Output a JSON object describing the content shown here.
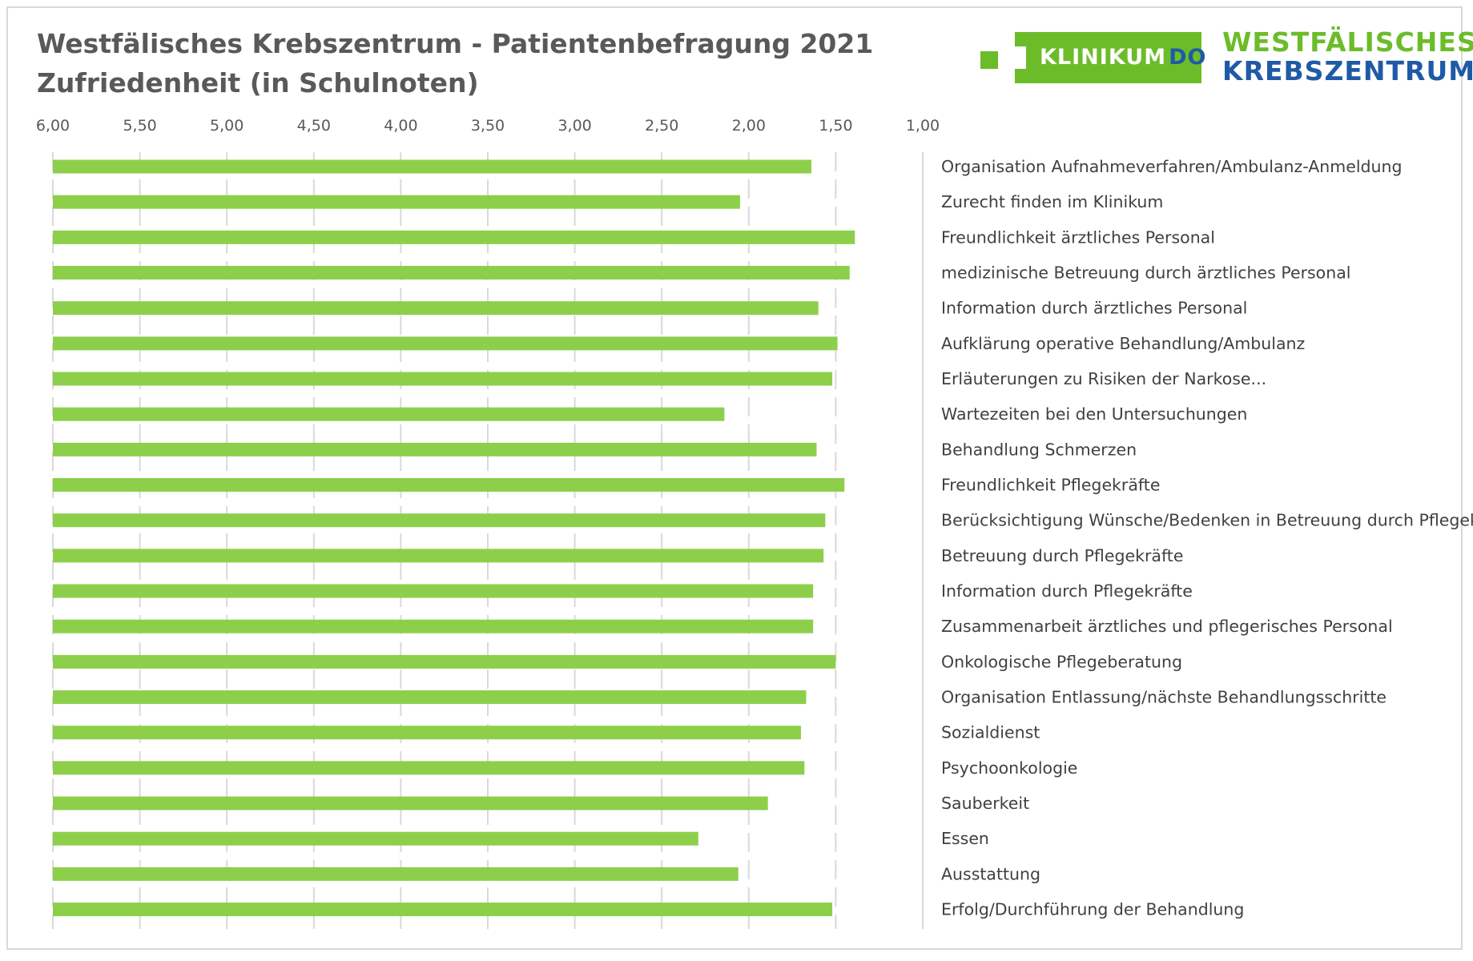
{
  "colors": {
    "bar": "#8dcf4a",
    "grid": "#d9d9d9",
    "logo_green": "#6cbc2a",
    "logo_blue": "#1f5aa6"
  },
  "logo": {
    "box_text_main": "KLINIKUM",
    "box_text_suffix": "DO",
    "line1": "WESTFÄLISCHES",
    "line2": "KREBSZENTRUM"
  },
  "chart_data": {
    "type": "bar",
    "orientation": "horizontal",
    "title": "Westfälisches Krebszentrum - Patientenbefragung 2021",
    "subtitle": "Zufriedenheit (in Schulnoten)",
    "xlim": [
      6.0,
      1.0
    ],
    "x_reversed": true,
    "ticks": [
      "6,00",
      "5,50",
      "5,00",
      "4,50",
      "4,00",
      "3,50",
      "3,00",
      "2,50",
      "2,00",
      "1,50",
      "1,00"
    ],
    "tick_values": [
      6.0,
      5.5,
      5.0,
      4.5,
      4.0,
      3.5,
      3.0,
      2.5,
      2.0,
      1.5,
      1.0
    ],
    "grid": true,
    "categories": [
      "Organisation Aufnahmeverfahren/Ambulanz-Anmeldung",
      "Zurecht finden im Klinikum",
      "Freundlichkeit ärztliches Personal",
      "medizinische Betreuung durch ärztliches Personal",
      "Information durch ärztliches Personal",
      "Aufklärung operative Behandlung/Ambulanz",
      "Erläuterungen zu Risiken der Narkose...",
      "Wartezeiten bei den Untersuchungen",
      "Behandlung Schmerzen",
      "Freundlichkeit Pflegekräfte",
      "Berücksichtigung Wünsche/Bedenken in Betreuung durch Pflegekräfte",
      "Betreuung durch Pflegekräfte",
      "Information durch Pflegekräfte",
      "Zusammenarbeit ärztliches und pflegerisches Personal",
      "Onkologische Pflegeberatung",
      "Organisation Entlassung/nächste Behandlungsschritte",
      "Sozialdienst",
      "Psychoonkologie",
      "Sauberkeit",
      "Essen",
      "Ausstattung",
      "Erfolg/Durchführung der Behandlung"
    ],
    "values": [
      1.64,
      2.05,
      1.39,
      1.42,
      1.6,
      1.49,
      1.52,
      2.14,
      1.61,
      1.45,
      1.56,
      1.57,
      1.63,
      1.63,
      1.5,
      1.67,
      1.7,
      1.68,
      1.89,
      2.29,
      2.06,
      1.52
    ]
  }
}
